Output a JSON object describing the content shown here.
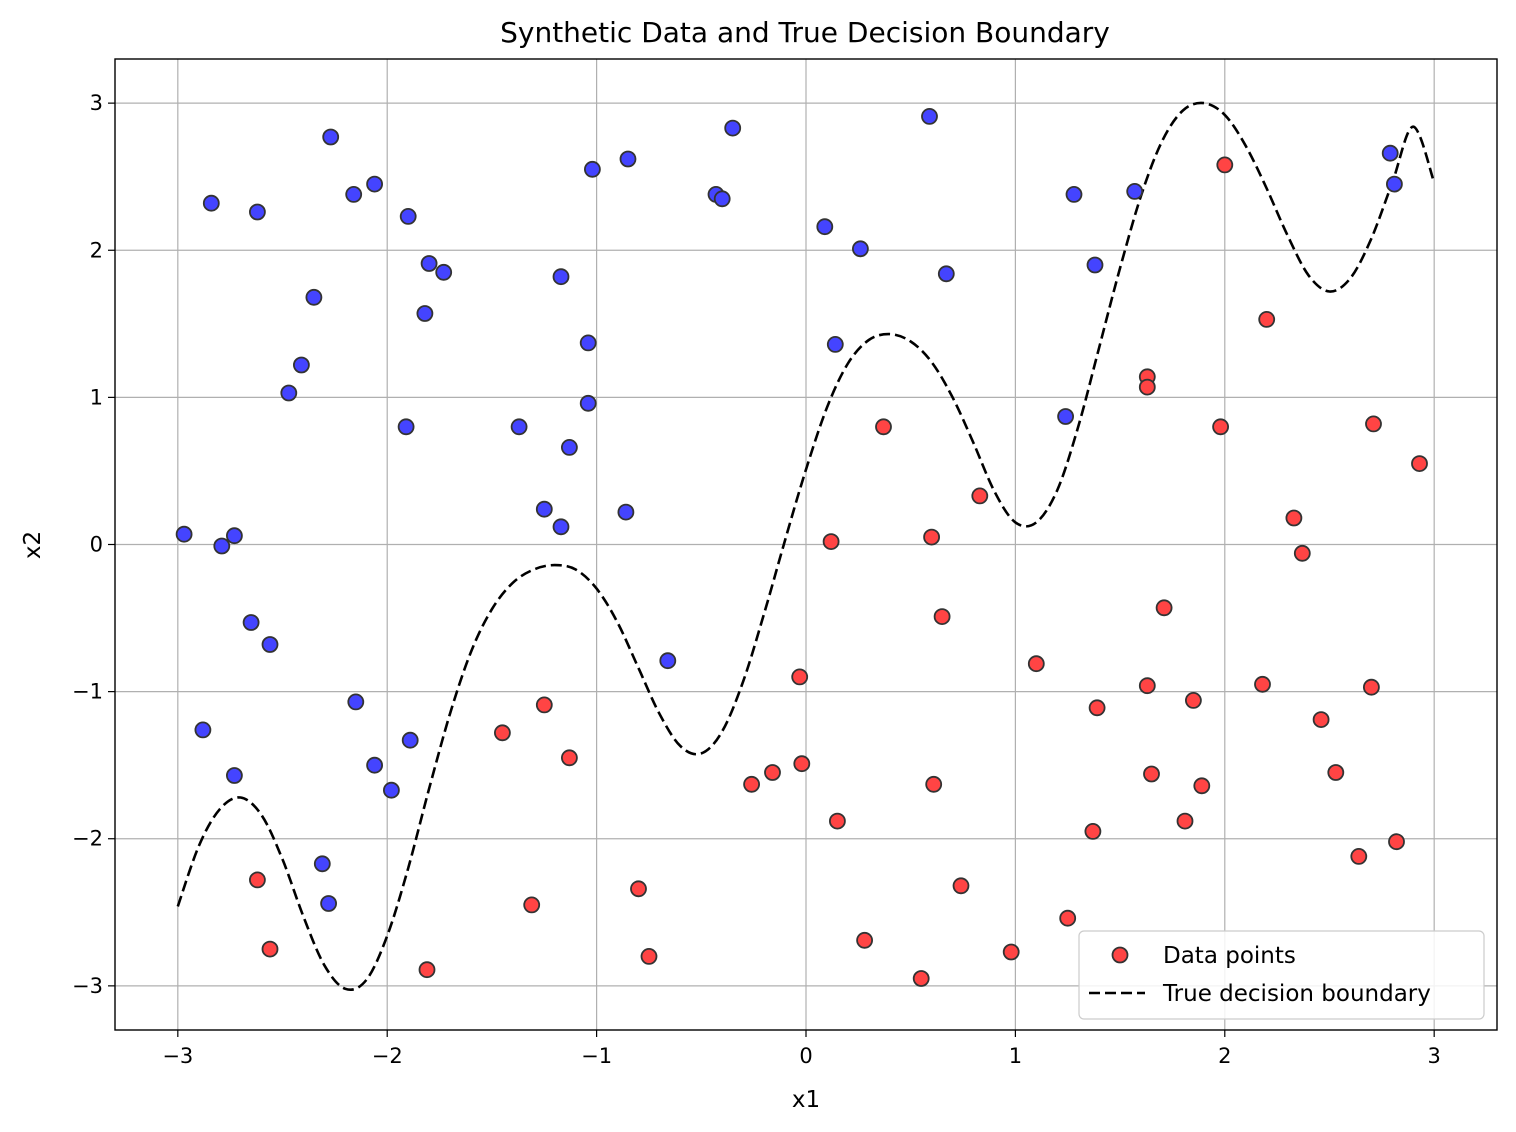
{
  "chart_data": {
    "type": "scatter",
    "title": "Synthetic Data and True Decision Boundary",
    "xlabel": "x1",
    "ylabel": "x2",
    "xlim": [
      -3.3,
      3.3
    ],
    "ylim": [
      -3.3,
      3.3
    ],
    "xticks": [
      -3,
      -2,
      -1,
      0,
      1,
      2,
      3
    ],
    "yticks": [
      -3,
      -2,
      -1,
      0,
      1,
      2,
      3
    ],
    "xtick_labels": [
      "−3",
      "−2",
      "−1",
      "0",
      "1",
      "2",
      "3"
    ],
    "ytick_labels": [
      "−3",
      "−2",
      "−1",
      "0",
      "1",
      "2",
      "3"
    ],
    "grid": true,
    "legend": {
      "placement": "lower-right",
      "entries": [
        "Data points",
        "True decision boundary"
      ]
    },
    "colors": {
      "class_above": "#4444ff",
      "class_below": "#ff4444",
      "marker_edge": "#333333",
      "boundary": "#000000",
      "grid": "#b0b0b0"
    },
    "boundary": {
      "name": "True decision boundary",
      "style": "dashed",
      "x": [
        -3.0,
        -2.9,
        -2.8,
        -2.7,
        -2.6,
        -2.5,
        -2.4,
        -2.3,
        -2.2,
        -2.1,
        -2.0,
        -1.9,
        -1.8,
        -1.7,
        -1.6,
        -1.5,
        -1.4,
        -1.3,
        -1.2,
        -1.1,
        -1.0,
        -0.9,
        -0.8,
        -0.7,
        -0.6,
        -0.5,
        -0.4,
        -0.3,
        -0.2,
        -0.1,
        0.0,
        0.1,
        0.2,
        0.3,
        0.4,
        0.5,
        0.6,
        0.7,
        0.8,
        0.9,
        1.0,
        1.1,
        1.2,
        1.3,
        1.4,
        1.5,
        1.6,
        1.7,
        1.8,
        1.9,
        2.0,
        2.1,
        2.2,
        2.3,
        2.4,
        2.5,
        2.6,
        2.7,
        2.8,
        2.9,
        3.0
      ],
      "y": [
        -2.46,
        -2.05,
        -1.8,
        -1.72,
        -1.84,
        -2.14,
        -2.53,
        -2.86,
        -3.02,
        -2.96,
        -2.66,
        -2.2,
        -1.66,
        -1.15,
        -0.73,
        -0.44,
        -0.26,
        -0.17,
        -0.14,
        -0.17,
        -0.3,
        -0.53,
        -0.84,
        -1.15,
        -1.37,
        -1.42,
        -1.27,
        -0.93,
        -0.47,
        0.03,
        0.51,
        0.93,
        1.23,
        1.39,
        1.43,
        1.38,
        1.24,
        1.0,
        0.69,
        0.36,
        0.15,
        0.15,
        0.37,
        0.8,
        1.34,
        1.88,
        2.37,
        2.74,
        2.95,
        3.0,
        2.92,
        2.71,
        2.42,
        2.1,
        1.83,
        1.72,
        1.81,
        2.08,
        2.46,
        2.84,
        2.46
      ]
    },
    "series": [
      {
        "name": "Data points",
        "points": [
          {
            "x": -2.97,
            "y": 0.07,
            "c": "b"
          },
          {
            "x": -2.79,
            "y": -0.01,
            "c": "b"
          },
          {
            "x": -2.73,
            "y": 0.06,
            "c": "b"
          },
          {
            "x": -2.84,
            "y": 2.32,
            "c": "b"
          },
          {
            "x": -2.62,
            "y": 2.26,
            "c": "b"
          },
          {
            "x": -2.27,
            "y": 2.77,
            "c": "b"
          },
          {
            "x": -2.16,
            "y": 2.38,
            "c": "b"
          },
          {
            "x": -2.06,
            "y": 2.45,
            "c": "b"
          },
          {
            "x": -1.9,
            "y": 2.23,
            "c": "b"
          },
          {
            "x": -1.8,
            "y": 1.91,
            "c": "b"
          },
          {
            "x": -1.73,
            "y": 1.85,
            "c": "b"
          },
          {
            "x": -1.82,
            "y": 1.57,
            "c": "b"
          },
          {
            "x": -2.35,
            "y": 1.68,
            "c": "b"
          },
          {
            "x": -2.41,
            "y": 1.22,
            "c": "b"
          },
          {
            "x": -2.47,
            "y": 1.03,
            "c": "b"
          },
          {
            "x": -1.91,
            "y": 0.8,
            "c": "b"
          },
          {
            "x": -2.65,
            "y": -0.53,
            "c": "b"
          },
          {
            "x": -2.56,
            "y": -0.68,
            "c": "b"
          },
          {
            "x": -2.15,
            "y": -1.07,
            "c": "b"
          },
          {
            "x": -2.88,
            "y": -1.26,
            "c": "b"
          },
          {
            "x": -2.73,
            "y": -1.57,
            "c": "b"
          },
          {
            "x": -1.89,
            "y": -1.33,
            "c": "b"
          },
          {
            "x": -2.06,
            "y": -1.5,
            "c": "b"
          },
          {
            "x": -1.98,
            "y": -1.67,
            "c": "b"
          },
          {
            "x": -2.31,
            "y": -2.17,
            "c": "b"
          },
          {
            "x": -2.28,
            "y": -2.44,
            "c": "b"
          },
          {
            "x": -1.02,
            "y": 2.55,
            "c": "b"
          },
          {
            "x": -0.85,
            "y": 2.62,
            "c": "b"
          },
          {
            "x": -0.43,
            "y": 2.38,
            "c": "b"
          },
          {
            "x": -0.4,
            "y": 2.35,
            "c": "b"
          },
          {
            "x": -0.35,
            "y": 2.83,
            "c": "b"
          },
          {
            "x": -1.17,
            "y": 1.82,
            "c": "b"
          },
          {
            "x": -1.04,
            "y": 1.37,
            "c": "b"
          },
          {
            "x": -1.04,
            "y": 0.96,
            "c": "b"
          },
          {
            "x": -1.13,
            "y": 0.66,
            "c": "b"
          },
          {
            "x": -1.37,
            "y": 0.8,
            "c": "b"
          },
          {
            "x": -1.25,
            "y": 0.24,
            "c": "b"
          },
          {
            "x": -1.17,
            "y": 0.12,
            "c": "b"
          },
          {
            "x": -0.86,
            "y": 0.22,
            "c": "b"
          },
          {
            "x": -0.66,
            "y": -0.79,
            "c": "b"
          },
          {
            "x": 0.09,
            "y": 2.16,
            "c": "b"
          },
          {
            "x": 0.26,
            "y": 2.01,
            "c": "b"
          },
          {
            "x": 0.59,
            "y": 2.91,
            "c": "b"
          },
          {
            "x": 0.67,
            "y": 1.84,
            "c": "b"
          },
          {
            "x": 0.14,
            "y": 1.36,
            "c": "b"
          },
          {
            "x": 1.28,
            "y": 2.38,
            "c": "b"
          },
          {
            "x": 1.57,
            "y": 2.4,
            "c": "b"
          },
          {
            "x": 1.38,
            "y": 1.9,
            "c": "b"
          },
          {
            "x": 1.24,
            "y": 0.87,
            "c": "b"
          },
          {
            "x": 2.79,
            "y": 2.66,
            "c": "b"
          },
          {
            "x": 2.81,
            "y": 2.45,
            "c": "b"
          },
          {
            "x": -2.62,
            "y": -2.28,
            "c": "r"
          },
          {
            "x": -2.56,
            "y": -2.75,
            "c": "r"
          },
          {
            "x": -1.81,
            "y": -2.89,
            "c": "r"
          },
          {
            "x": -1.45,
            "y": -1.28,
            "c": "r"
          },
          {
            "x": -1.25,
            "y": -1.09,
            "c": "r"
          },
          {
            "x": -1.13,
            "y": -1.45,
            "c": "r"
          },
          {
            "x": -1.31,
            "y": -2.45,
            "c": "r"
          },
          {
            "x": -0.8,
            "y": -2.34,
            "c": "r"
          },
          {
            "x": -0.75,
            "y": -2.8,
            "c": "r"
          },
          {
            "x": -0.26,
            "y": -1.63,
            "c": "r"
          },
          {
            "x": -0.16,
            "y": -1.55,
            "c": "r"
          },
          {
            "x": -0.03,
            "y": -0.9,
            "c": "r"
          },
          {
            "x": -0.02,
            "y": -1.49,
            "c": "r"
          },
          {
            "x": 0.12,
            "y": 0.02,
            "c": "r"
          },
          {
            "x": 0.15,
            "y": -1.88,
            "c": "r"
          },
          {
            "x": 0.28,
            "y": -2.69,
            "c": "r"
          },
          {
            "x": 0.37,
            "y": 0.8,
            "c": "r"
          },
          {
            "x": 0.55,
            "y": -2.95,
            "c": "r"
          },
          {
            "x": 0.6,
            "y": 0.05,
            "c": "r"
          },
          {
            "x": 0.61,
            "y": -1.63,
            "c": "r"
          },
          {
            "x": 0.65,
            "y": -0.49,
            "c": "r"
          },
          {
            "x": 0.74,
            "y": -2.32,
            "c": "r"
          },
          {
            "x": 0.83,
            "y": 0.33,
            "c": "r"
          },
          {
            "x": 0.98,
            "y": -2.77,
            "c": "r"
          },
          {
            "x": 1.1,
            "y": -0.81,
            "c": "r"
          },
          {
            "x": 1.25,
            "y": -2.54,
            "c": "r"
          },
          {
            "x": 1.37,
            "y": -1.95,
            "c": "r"
          },
          {
            "x": 1.39,
            "y": -1.11,
            "c": "r"
          },
          {
            "x": 1.63,
            "y": 1.14,
            "c": "r"
          },
          {
            "x": 1.63,
            "y": 1.07,
            "c": "r"
          },
          {
            "x": 1.63,
            "y": -0.96,
            "c": "r"
          },
          {
            "x": 1.65,
            "y": -1.56,
            "c": "r"
          },
          {
            "x": 1.71,
            "y": -0.43,
            "c": "r"
          },
          {
            "x": 1.81,
            "y": -1.88,
            "c": "r"
          },
          {
            "x": 1.85,
            "y": -1.06,
            "c": "r"
          },
          {
            "x": 1.89,
            "y": -1.64,
            "c": "r"
          },
          {
            "x": 1.98,
            "y": 0.8,
            "c": "r"
          },
          {
            "x": 2.0,
            "y": 2.58,
            "c": "r"
          },
          {
            "x": 2.18,
            "y": -0.95,
            "c": "r"
          },
          {
            "x": 2.2,
            "y": 1.53,
            "c": "r"
          },
          {
            "x": 2.33,
            "y": 0.18,
            "c": "r"
          },
          {
            "x": 2.37,
            "y": -0.06,
            "c": "r"
          },
          {
            "x": 2.46,
            "y": -1.19,
            "c": "r"
          },
          {
            "x": 2.53,
            "y": -1.55,
            "c": "r"
          },
          {
            "x": 2.64,
            "y": -2.12,
            "c": "r"
          },
          {
            "x": 2.7,
            "y": -0.97,
            "c": "r"
          },
          {
            "x": 2.71,
            "y": 0.82,
            "c": "r"
          },
          {
            "x": 2.82,
            "y": -2.02,
            "c": "r"
          },
          {
            "x": 2.93,
            "y": 0.55,
            "c": "r"
          }
        ]
      }
    ]
  }
}
